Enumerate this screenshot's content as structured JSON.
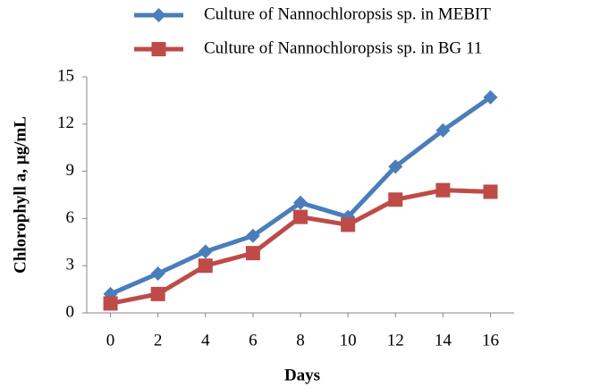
{
  "chart_data": {
    "type": "line",
    "x_label": "Days",
    "y_label": "Chlorophyll a,  µg/mL",
    "x": [
      0,
      2,
      4,
      6,
      8,
      10,
      12,
      14,
      16
    ],
    "xlim": [
      -1,
      17
    ],
    "xticks": [
      0,
      2,
      4,
      6,
      8,
      10,
      12,
      14,
      16
    ],
    "ylim": [
      0,
      15
    ],
    "yticks": [
      0,
      3,
      6,
      9,
      12,
      15
    ],
    "series": [
      {
        "name": "Culture of Nannochloropsis sp. in MEBIT",
        "color": "#4a7ebb",
        "marker": "diamond",
        "values": [
          1.2,
          2.5,
          3.9,
          4.9,
          7.0,
          6.1,
          9.3,
          11.6,
          13.7
        ]
      },
      {
        "name": "Culture of Nannochloropsis sp. in BG 11",
        "color": "#be4b48",
        "marker": "square",
        "values": [
          0.6,
          1.2,
          3.0,
          3.8,
          6.1,
          5.6,
          7.2,
          7.8,
          7.7
        ]
      }
    ]
  }
}
